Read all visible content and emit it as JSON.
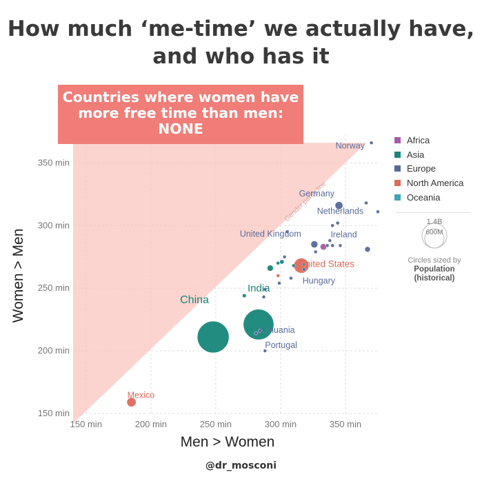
{
  "title": {
    "line1": "How much ‘me-time’ we actually have,",
    "line2": "and who has it"
  },
  "callout": {
    "line1": "Countries where women have",
    "line2": "more free time than men:",
    "line3": "NONE",
    "color": "#f07d78"
  },
  "credit": "@dr_mosconi",
  "legend": {
    "items": [
      {
        "label": "Africa",
        "color": "#a55ba6"
      },
      {
        "label": "Asia",
        "color": "#18867a"
      },
      {
        "label": "Europe",
        "color": "#586a99"
      },
      {
        "label": "North America",
        "color": "#de6b5b"
      },
      {
        "label": "Oceania",
        "color": "#3fa6b5"
      }
    ],
    "size_key": {
      "large": "1.4B",
      "small": "600M"
    },
    "size_note": "Circles sized by",
    "size_note_bold": "Population (historical)"
  },
  "chart_data": {
    "type": "scatter",
    "xlabel": "Men > Women",
    "ylabel": "Women > Men",
    "xlim": [
      140,
      375
    ],
    "ylim": [
      150,
      370
    ],
    "x_ticks": [
      150,
      200,
      250,
      300,
      350
    ],
    "y_ticks": [
      150,
      200,
      250,
      300,
      350
    ],
    "x_tick_labels": [
      "150 min",
      "200 min",
      "250 min",
      "300 min",
      "350 min"
    ],
    "y_tick_labels": [
      "150 min",
      "200 min",
      "250 min",
      "300 min",
      "350 min"
    ],
    "grid": true,
    "diagonal_label": "Gender parity line",
    "parity_region_color": "#f9c6bf",
    "points": [
      {
        "label": "Norway",
        "x": 370,
        "y": 366,
        "region": "Europe",
        "pop": 5
      },
      {
        "label": "Germany",
        "x": 345,
        "y": 316,
        "region": "Europe",
        "pop": 82
      },
      {
        "label": "Netherlands",
        "x": 344,
        "y": 302,
        "region": "Europe",
        "pop": 17
      },
      {
        "label": "Ireland",
        "x": 346,
        "y": 284,
        "region": "Europe",
        "pop": 5
      },
      {
        "label": "United Kingdom",
        "x": 326,
        "y": 285,
        "region": "Europe",
        "pop": 65
      },
      {
        "label": "United States",
        "x": 316,
        "y": 268,
        "region": "North America",
        "pop": 320
      },
      {
        "label": "Hungary",
        "x": 318,
        "y": 269,
        "region": "Europe",
        "pop": 10
      },
      {
        "label": "India",
        "x": 283,
        "y": 221,
        "region": "Asia",
        "pop": 1300
      },
      {
        "label": "China",
        "x": 248,
        "y": 211,
        "region": "Asia",
        "pop": 1400
      },
      {
        "label": "Lithuania",
        "x": 284,
        "y": 216,
        "region": "Europe",
        "pop": 3
      },
      {
        "label": "Portugal",
        "x": 288,
        "y": 200,
        "region": "Europe",
        "pop": 10
      },
      {
        "label": "Mexico",
        "x": 185,
        "y": 159,
        "region": "North America",
        "pop": 125
      },
      {
        "label": "",
        "x": 366,
        "y": 318,
        "region": "Europe",
        "pop": 4
      },
      {
        "label": "",
        "x": 375,
        "y": 311,
        "region": "Europe",
        "pop": 5
      },
      {
        "label": "",
        "x": 367,
        "y": 281,
        "region": "Europe",
        "pop": 40
      },
      {
        "label": "",
        "x": 333,
        "y": 283,
        "region": "Africa",
        "pop": 55
      },
      {
        "label": "",
        "x": 336,
        "y": 284,
        "region": "Europe",
        "pop": 5
      },
      {
        "label": "",
        "x": 338,
        "y": 288,
        "region": "Europe",
        "pop": 4
      },
      {
        "label": "",
        "x": 340,
        "y": 284,
        "region": "Europe",
        "pop": 10
      },
      {
        "label": "",
        "x": 327,
        "y": 279,
        "region": "Europe",
        "pop": 4
      },
      {
        "label": "",
        "x": 305,
        "y": 295,
        "region": "Europe",
        "pop": 3
      },
      {
        "label": "",
        "x": 340,
        "y": 300,
        "region": "Europe",
        "pop": 3
      },
      {
        "label": "",
        "x": 310,
        "y": 268,
        "region": "Asia",
        "pop": 8
      },
      {
        "label": "",
        "x": 318,
        "y": 265,
        "region": "Europe",
        "pop": 10
      },
      {
        "label": "",
        "x": 292,
        "y": 266,
        "region": "Asia",
        "pop": 50
      },
      {
        "label": "",
        "x": 301,
        "y": 271,
        "region": "Asia",
        "pop": 25
      },
      {
        "label": "",
        "x": 298,
        "y": 270,
        "region": "Asia",
        "pop": 8
      },
      {
        "label": "",
        "x": 298,
        "y": 260,
        "region": "North America",
        "pop": 12
      },
      {
        "label": "",
        "x": 299,
        "y": 254,
        "region": "Europe",
        "pop": 3
      },
      {
        "label": "",
        "x": 308,
        "y": 258,
        "region": "Europe",
        "pop": 3
      },
      {
        "label": "",
        "x": 288,
        "y": 249,
        "region": "Europe",
        "pop": 2
      },
      {
        "label": "",
        "x": 272,
        "y": 244,
        "region": "Asia",
        "pop": 20
      },
      {
        "label": "",
        "x": 303,
        "y": 275,
        "region": "Europe",
        "pop": 5
      },
      {
        "label": "",
        "x": 287,
        "y": 243,
        "region": "Europe",
        "pop": 2
      },
      {
        "label": "",
        "x": 281,
        "y": 214,
        "region": "Europe",
        "pop": 3
      }
    ]
  }
}
